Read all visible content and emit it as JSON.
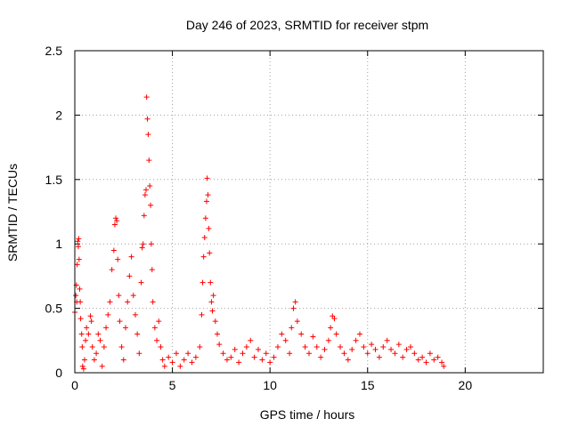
{
  "chart_data": {
    "type": "scatter",
    "title": "Day 246 of 2023, SRMTID for receiver stpm",
    "xlabel": "GPS time / hours",
    "ylabel": "SRMTID / TECUs",
    "xlim": [
      0,
      24
    ],
    "ylim": [
      0,
      2.5
    ],
    "x_ticks": [
      0,
      5,
      10,
      15,
      20
    ],
    "y_ticks": [
      0,
      0.5,
      1,
      1.5,
      2,
      2.5
    ],
    "x_tick_labels": [
      "0",
      "5",
      "10",
      "15",
      "20"
    ],
    "y_tick_labels": [
      "0",
      "0.5",
      "1",
      "1.5",
      "2",
      "2.5"
    ],
    "grid": true,
    "marker": "+",
    "color": "#ff0000",
    "series": [
      {
        "name": "SRMTID",
        "points": [
          [
            0.0,
            0.47
          ],
          [
            0.05,
            0.6
          ],
          [
            0.08,
            0.68
          ],
          [
            0.1,
            0.55
          ],
          [
            0.12,
            0.84
          ],
          [
            0.15,
            1.02
          ],
          [
            0.18,
            0.98
          ],
          [
            0.2,
            1.04
          ],
          [
            0.22,
            0.88
          ],
          [
            0.25,
            0.65
          ],
          [
            0.28,
            0.55
          ],
          [
            0.3,
            0.42
          ],
          [
            0.35,
            0.3
          ],
          [
            0.38,
            0.2
          ],
          [
            0.4,
            0.05
          ],
          [
            0.45,
            0.03
          ],
          [
            0.5,
            0.1
          ],
          [
            0.55,
            0.25
          ],
          [
            0.6,
            0.35
          ],
          [
            0.7,
            0.3
          ],
          [
            0.8,
            0.44
          ],
          [
            0.85,
            0.4
          ],
          [
            0.9,
            0.2
          ],
          [
            1.0,
            0.1
          ],
          [
            1.1,
            0.15
          ],
          [
            1.2,
            0.3
          ],
          [
            1.3,
            0.25
          ],
          [
            1.4,
            0.05
          ],
          [
            1.5,
            0.2
          ],
          [
            1.6,
            0.35
          ],
          [
            1.7,
            0.45
          ],
          [
            1.8,
            0.55
          ],
          [
            1.9,
            0.8
          ],
          [
            2.0,
            0.95
          ],
          [
            2.05,
            1.15
          ],
          [
            2.1,
            1.2
          ],
          [
            2.15,
            1.18
          ],
          [
            2.2,
            0.88
          ],
          [
            2.25,
            0.6
          ],
          [
            2.3,
            0.4
          ],
          [
            2.4,
            0.2
          ],
          [
            2.5,
            0.1
          ],
          [
            2.6,
            0.35
          ],
          [
            2.7,
            0.55
          ],
          [
            2.8,
            0.75
          ],
          [
            2.9,
            0.9
          ],
          [
            3.0,
            0.6
          ],
          [
            3.1,
            0.45
          ],
          [
            3.2,
            0.3
          ],
          [
            3.3,
            0.15
          ],
          [
            3.4,
            0.7
          ],
          [
            3.45,
            0.97
          ],
          [
            3.5,
            1.0
          ],
          [
            3.55,
            1.22
          ],
          [
            3.6,
            1.38
          ],
          [
            3.65,
            1.42
          ],
          [
            3.68,
            2.14
          ],
          [
            3.72,
            1.97
          ],
          [
            3.76,
            1.85
          ],
          [
            3.8,
            1.65
          ],
          [
            3.84,
            1.45
          ],
          [
            3.88,
            1.3
          ],
          [
            3.92,
            1.0
          ],
          [
            3.96,
            0.8
          ],
          [
            4.0,
            0.55
          ],
          [
            4.1,
            0.35
          ],
          [
            4.2,
            0.25
          ],
          [
            4.3,
            0.4
          ],
          [
            4.4,
            0.2
          ],
          [
            4.5,
            0.1
          ],
          [
            4.6,
            0.05
          ],
          [
            4.8,
            0.12
          ],
          [
            5.0,
            0.08
          ],
          [
            5.2,
            0.15
          ],
          [
            5.4,
            0.05
          ],
          [
            5.6,
            0.1
          ],
          [
            5.8,
            0.15
          ],
          [
            6.0,
            0.08
          ],
          [
            6.2,
            0.12
          ],
          [
            6.4,
            0.2
          ],
          [
            6.5,
            0.45
          ],
          [
            6.55,
            0.7
          ],
          [
            6.6,
            0.9
          ],
          [
            6.65,
            1.05
          ],
          [
            6.7,
            1.2
          ],
          [
            6.75,
            1.33
          ],
          [
            6.78,
            1.51
          ],
          [
            6.82,
            1.38
          ],
          [
            6.86,
            1.12
          ],
          [
            6.9,
            0.93
          ],
          [
            6.95,
            0.7
          ],
          [
            7.0,
            0.55
          ],
          [
            7.05,
            0.48
          ],
          [
            7.1,
            0.6
          ],
          [
            7.2,
            0.4
          ],
          [
            7.3,
            0.3
          ],
          [
            7.4,
            0.22
          ],
          [
            7.6,
            0.15
          ],
          [
            7.8,
            0.1
          ],
          [
            8.0,
            0.12
          ],
          [
            8.2,
            0.18
          ],
          [
            8.4,
            0.08
          ],
          [
            8.6,
            0.15
          ],
          [
            8.8,
            0.2
          ],
          [
            9.0,
            0.25
          ],
          [
            9.2,
            0.12
          ],
          [
            9.4,
            0.18
          ],
          [
            9.6,
            0.1
          ],
          [
            9.8,
            0.15
          ],
          [
            10.0,
            0.08
          ],
          [
            10.2,
            0.12
          ],
          [
            10.4,
            0.2
          ],
          [
            10.6,
            0.3
          ],
          [
            10.8,
            0.25
          ],
          [
            11.0,
            0.15
          ],
          [
            11.1,
            0.35
          ],
          [
            11.2,
            0.5
          ],
          [
            11.3,
            0.55
          ],
          [
            11.4,
            0.4
          ],
          [
            11.6,
            0.3
          ],
          [
            11.8,
            0.2
          ],
          [
            12.0,
            0.15
          ],
          [
            12.2,
            0.28
          ],
          [
            12.4,
            0.2
          ],
          [
            12.6,
            0.12
          ],
          [
            12.8,
            0.18
          ],
          [
            13.0,
            0.25
          ],
          [
            13.1,
            0.35
          ],
          [
            13.2,
            0.44
          ],
          [
            13.3,
            0.42
          ],
          [
            13.4,
            0.3
          ],
          [
            13.6,
            0.2
          ],
          [
            13.8,
            0.15
          ],
          [
            14.0,
            0.1
          ],
          [
            14.2,
            0.18
          ],
          [
            14.4,
            0.25
          ],
          [
            14.6,
            0.3
          ],
          [
            14.8,
            0.2
          ],
          [
            15.0,
            0.15
          ],
          [
            15.2,
            0.22
          ],
          [
            15.4,
            0.18
          ],
          [
            15.6,
            0.12
          ],
          [
            15.8,
            0.2
          ],
          [
            16.0,
            0.25
          ],
          [
            16.2,
            0.18
          ],
          [
            16.4,
            0.15
          ],
          [
            16.6,
            0.22
          ],
          [
            16.8,
            0.12
          ],
          [
            17.0,
            0.18
          ],
          [
            17.2,
            0.2
          ],
          [
            17.4,
            0.15
          ],
          [
            17.6,
            0.1
          ],
          [
            17.8,
            0.12
          ],
          [
            18.0,
            0.08
          ],
          [
            18.2,
            0.15
          ],
          [
            18.4,
            0.1
          ],
          [
            18.6,
            0.12
          ],
          [
            18.8,
            0.08
          ],
          [
            18.9,
            0.05
          ]
        ]
      }
    ]
  }
}
